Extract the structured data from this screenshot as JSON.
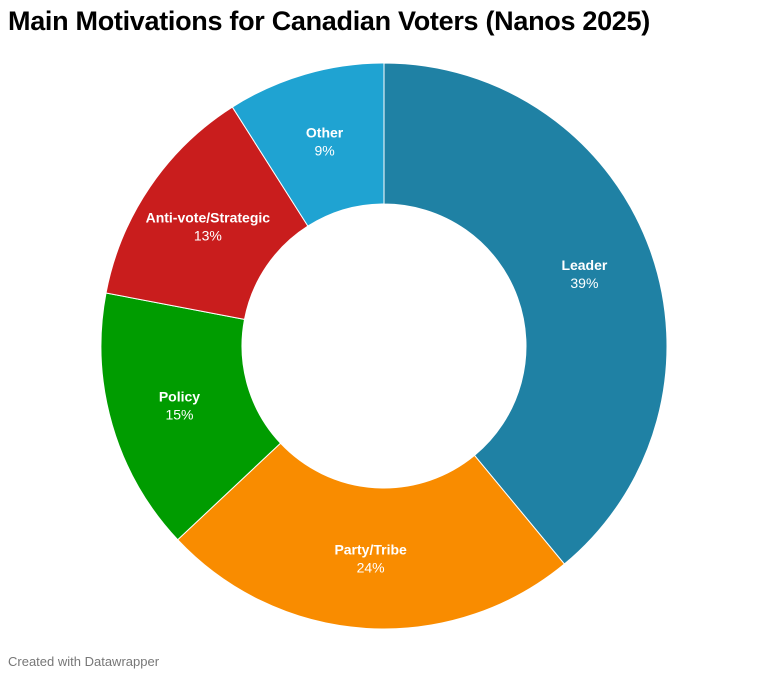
{
  "chart_data": {
    "type": "pie",
    "title": "Main Motivations for Canadian Voters (Nanos 2025)",
    "categories": [
      "Leader",
      "Party/Tribe",
      "Policy",
      "Anti-vote/Strategic",
      "Other"
    ],
    "values": [
      39,
      24,
      15,
      13,
      9
    ],
    "value_labels": [
      "39%",
      "24%",
      "15%",
      "13%",
      "9%"
    ],
    "colors": [
      "#1f81a4",
      "#f98c00",
      "#009c00",
      "#c91d1d",
      "#1fa3d2"
    ],
    "donut": true
  },
  "footer": "Created with Datawrapper"
}
